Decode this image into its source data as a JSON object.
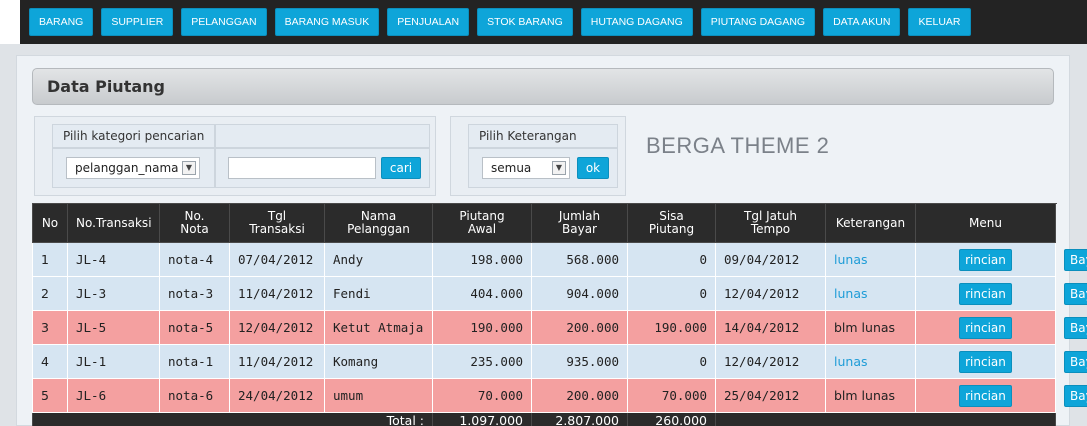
{
  "nav": {
    "items": [
      "BARANG",
      "SUPPLIER",
      "PELANGGAN",
      "BARANG MASUK",
      "PENJUALAN",
      "STOK BARANG",
      "HUTANG DAGANG",
      "PIUTANG DAGANG",
      "DATA AKUN",
      "KELUAR"
    ]
  },
  "section": {
    "title": "Data Piutang"
  },
  "filter": {
    "category_label": "Pilih kategori pencarian",
    "category_value": "pelanggan_nama",
    "search_value": "",
    "search_button": "cari"
  },
  "keterangan": {
    "label": "Pilih Keterangan",
    "value": "semua",
    "ok_button": "ok"
  },
  "theme_label": "BERGA THEME 2",
  "colors": {
    "nav_button": "#0ea5d9",
    "row_lunas": "#d6e5f2",
    "row_blm_lunas": "#f4a0a0",
    "header": "#2b2b2b"
  },
  "table": {
    "headers": [
      "No",
      "No.Transaksi",
      "No.\nNota",
      "Tgl\nTransaksi",
      "Nama\nPelanggan",
      "Piutang\nAwal",
      "Jumlah\nBayar",
      "Sisa\nPiutang",
      "Tgl Jatuh\nTempo",
      "Keterangan",
      "Menu"
    ],
    "rows": [
      {
        "no": "1",
        "transaksi": "JL-4",
        "nota": "nota-4",
        "tgl": "07/04/2012",
        "nama": "Andy",
        "awal": "198.000",
        "bayar": "568.000",
        "sisa": "0",
        "tempo": "09/04/2012",
        "ket": "lunas",
        "status": "lunas",
        "rincian": "rincian",
        "bayar_btn": "Bayar"
      },
      {
        "no": "2",
        "transaksi": "JL-3",
        "nota": "nota-3",
        "tgl": "11/04/2012",
        "nama": "Fendi",
        "awal": "404.000",
        "bayar": "904.000",
        "sisa": "0",
        "tempo": "12/04/2012",
        "ket": "lunas",
        "status": "lunas",
        "rincian": "rincian",
        "bayar_btn": "Bayar"
      },
      {
        "no": "3",
        "transaksi": "JL-5",
        "nota": "nota-5",
        "tgl": "12/04/2012",
        "nama": "Ketut Atmaja",
        "awal": "190.000",
        "bayar": "200.000",
        "sisa": "190.000",
        "tempo": "14/04/2012",
        "ket": "blm lunas",
        "status": "blm",
        "rincian": "rincian",
        "bayar_btn": "Bayar"
      },
      {
        "no": "4",
        "transaksi": "JL-1",
        "nota": "nota-1",
        "tgl": "11/04/2012",
        "nama": "Komang",
        "awal": "235.000",
        "bayar": "935.000",
        "sisa": "0",
        "tempo": "12/04/2012",
        "ket": "lunas",
        "status": "lunas",
        "rincian": "rincian",
        "bayar_btn": "Bayar"
      },
      {
        "no": "5",
        "transaksi": "JL-6",
        "nota": "nota-6",
        "tgl": "24/04/2012",
        "nama": "umum",
        "awal": "70.000",
        "bayar": "200.000",
        "sisa": "70.000",
        "tempo": "25/04/2012",
        "ket": "blm lunas",
        "status": "blm",
        "rincian": "rincian",
        "bayar_btn": "Bayar"
      }
    ],
    "total": {
      "label": "Total :",
      "awal": "1.097.000",
      "bayar": "2.807.000",
      "sisa": "260.000"
    }
  }
}
